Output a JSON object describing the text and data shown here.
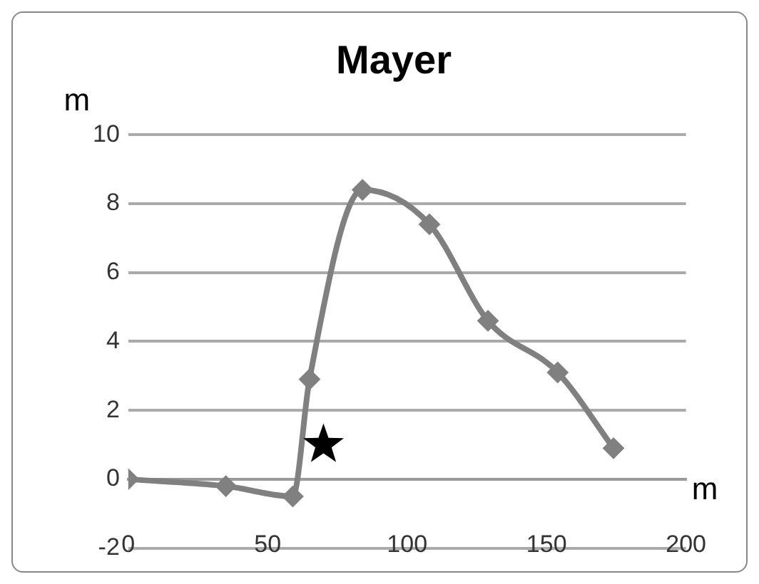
{
  "chart_data": {
    "type": "line",
    "title": "Mayer",
    "xlabel": "m",
    "ylabel": "m",
    "series": [
      {
        "color": "#808080",
        "marker": "diamond",
        "x": [
          0,
          35,
          59,
          65,
          84,
          108,
          129,
          154,
          174
        ],
        "values": [
          0,
          -0.2,
          -0.5,
          2.9,
          8.4,
          7.4,
          4.6,
          3.1,
          0.9
        ]
      },
      {
        "type": "scatter",
        "color": "#000000",
        "marker": "star",
        "x": [
          70
        ],
        "values": [
          1.0
        ]
      }
    ],
    "xlim": [
      0,
      200
    ],
    "xticks": [
      0,
      50,
      100,
      150,
      200
    ],
    "ylim": [
      -2,
      10
    ],
    "yticks": [
      -2,
      0,
      2,
      4,
      6,
      8,
      10
    ],
    "grid": "y",
    "legend": false,
    "line_style": "solid"
  }
}
